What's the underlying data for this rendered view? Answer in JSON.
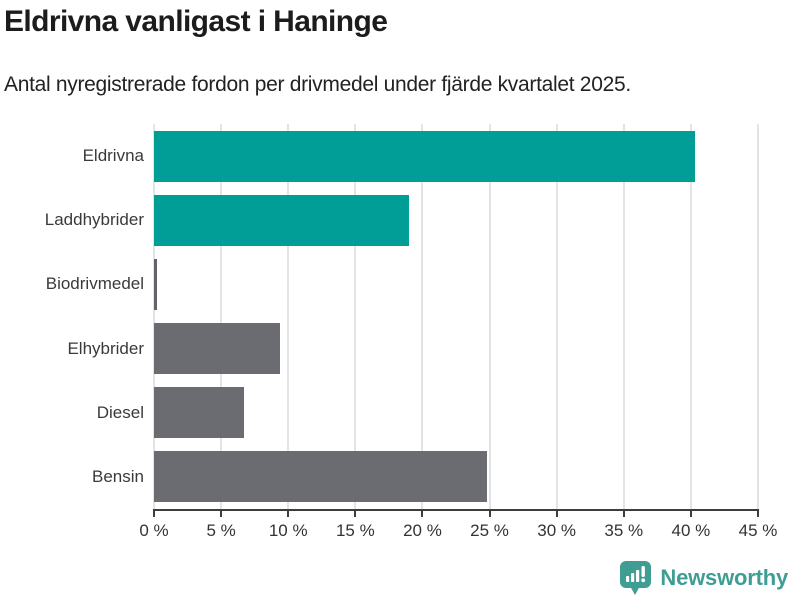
{
  "chart_data": {
    "type": "bar",
    "orientation": "horizontal",
    "title": "Eldrivna vanligast i Haninge",
    "subtitle": "Antal nyregistrerade fordon per drivmedel under fjärde kvartalet 2025.",
    "categories": [
      "Eldrivna",
      "Laddhybrider",
      "Biodrivmedel",
      "Elhybrider",
      "Diesel",
      "Bensin"
    ],
    "values": [
      40.3,
      19.0,
      0.2,
      9.4,
      6.7,
      24.8
    ],
    "unit": "%",
    "bar_colors": [
      "#009e96",
      "#009e96",
      "#63636a",
      "#6b6b72",
      "#6b6b72",
      "#6b6b72"
    ],
    "highlight_color": "#009e96",
    "base_color": "#6b6b72",
    "xlim": [
      0,
      45
    ],
    "tick_values": [
      0,
      5,
      10,
      15,
      20,
      25,
      30,
      35,
      40,
      45
    ],
    "tick_labels": [
      "0 %",
      "5 %",
      "10 %",
      "15 %",
      "20 %",
      "25 %",
      "30 %",
      "35 %",
      "40 %",
      "45 %"
    ],
    "grid": true,
    "legend": "none",
    "xlabel": "",
    "ylabel": ""
  },
  "footer": {
    "brand": "Newsworthy",
    "brand_color": "#3f9d93",
    "logo_icon": "newsworthy-speech-bubble-barchart-icon"
  }
}
